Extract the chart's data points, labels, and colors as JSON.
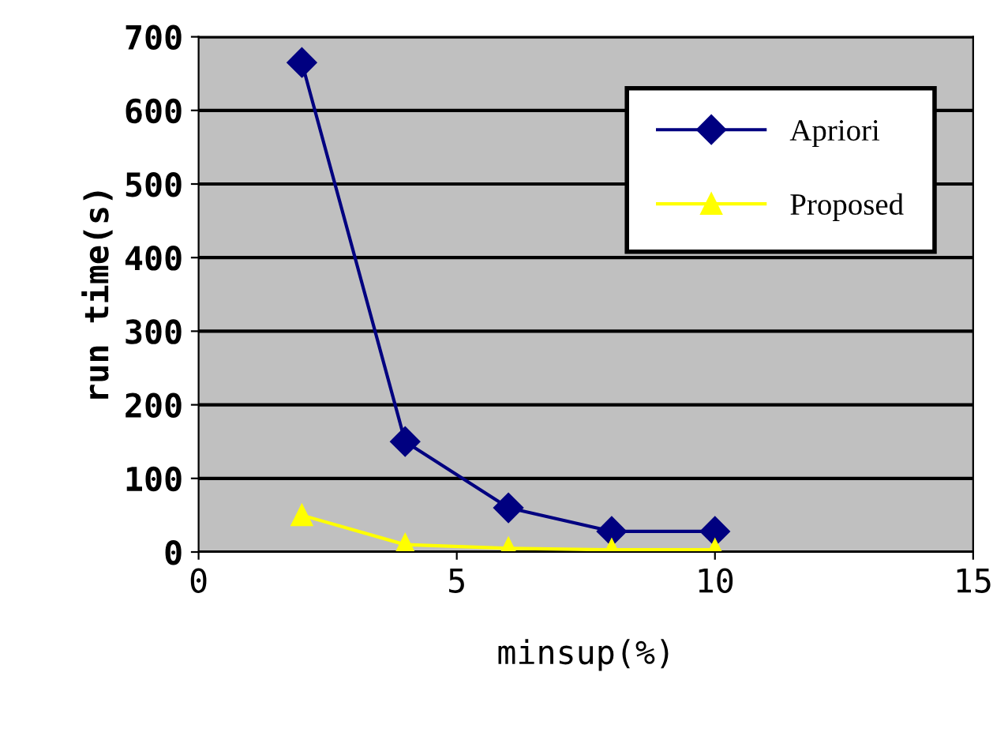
{
  "chart_data": {
    "type": "line",
    "xlabel": "minsup(%)",
    "ylabel": "run time(s)",
    "x": [
      2,
      4,
      6,
      8,
      10
    ],
    "series": [
      {
        "name": "Apriori",
        "color": "#000080",
        "marker": "diamond",
        "values": [
          665,
          150,
          60,
          28,
          28
        ]
      },
      {
        "name": "Proposed",
        "color": "#ffff00",
        "marker": "triangle",
        "values": [
          50,
          10,
          5,
          3,
          3
        ]
      }
    ],
    "xlim": [
      0,
      15
    ],
    "xticks": [
      0,
      5,
      10,
      15
    ],
    "ylim": [
      0,
      700
    ],
    "yticks": [
      0,
      100,
      200,
      300,
      400,
      500,
      600,
      700
    ],
    "grid": "y",
    "legend": "top right",
    "line_style": "solid"
  }
}
